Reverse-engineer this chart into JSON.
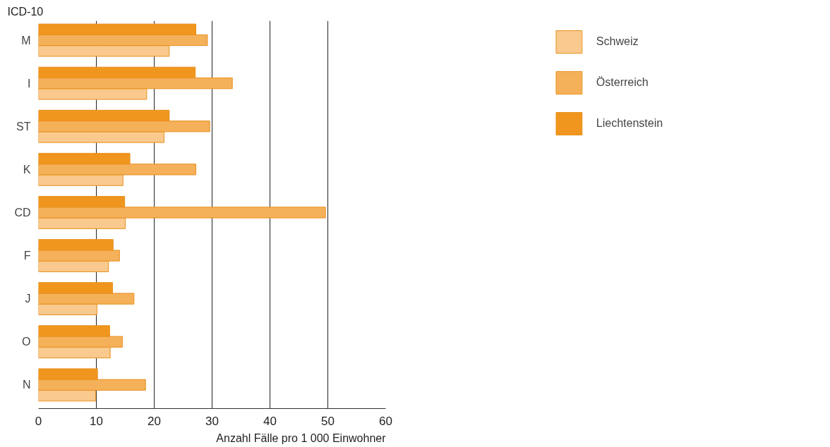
{
  "chart_data": {
    "type": "bar",
    "orientation": "horizontal",
    "xlabel": "Anzahl Fälle pro 1 000 Einwohner",
    "ylabel": "ICD-10",
    "categories": [
      "M",
      "I",
      "ST",
      "K",
      "CD",
      "F",
      "J",
      "O",
      "N"
    ],
    "series": [
      {
        "name": "Schweiz",
        "color": "#f9c98e",
        "values": [
          22.6,
          18.7,
          21.7,
          14.6,
          15.0,
          12.1,
          10.1,
          12.4,
          9.9
        ]
      },
      {
        "name": "Österreich",
        "color": "#f5b05a",
        "values": [
          29.2,
          33.5,
          29.6,
          27.2,
          49.6,
          14.0,
          16.5,
          14.5,
          18.5
        ]
      },
      {
        "name": "Liechtenstein",
        "color": "#f0961e",
        "values": [
          27.2,
          27.1,
          22.6,
          15.8,
          14.9,
          12.9,
          12.8,
          12.3,
          10.2
        ]
      }
    ],
    "xlim": [
      0,
      60
    ],
    "xticks": [
      0,
      10,
      20,
      30,
      40,
      50,
      60
    ],
    "grid": "x",
    "legend": "right"
  }
}
